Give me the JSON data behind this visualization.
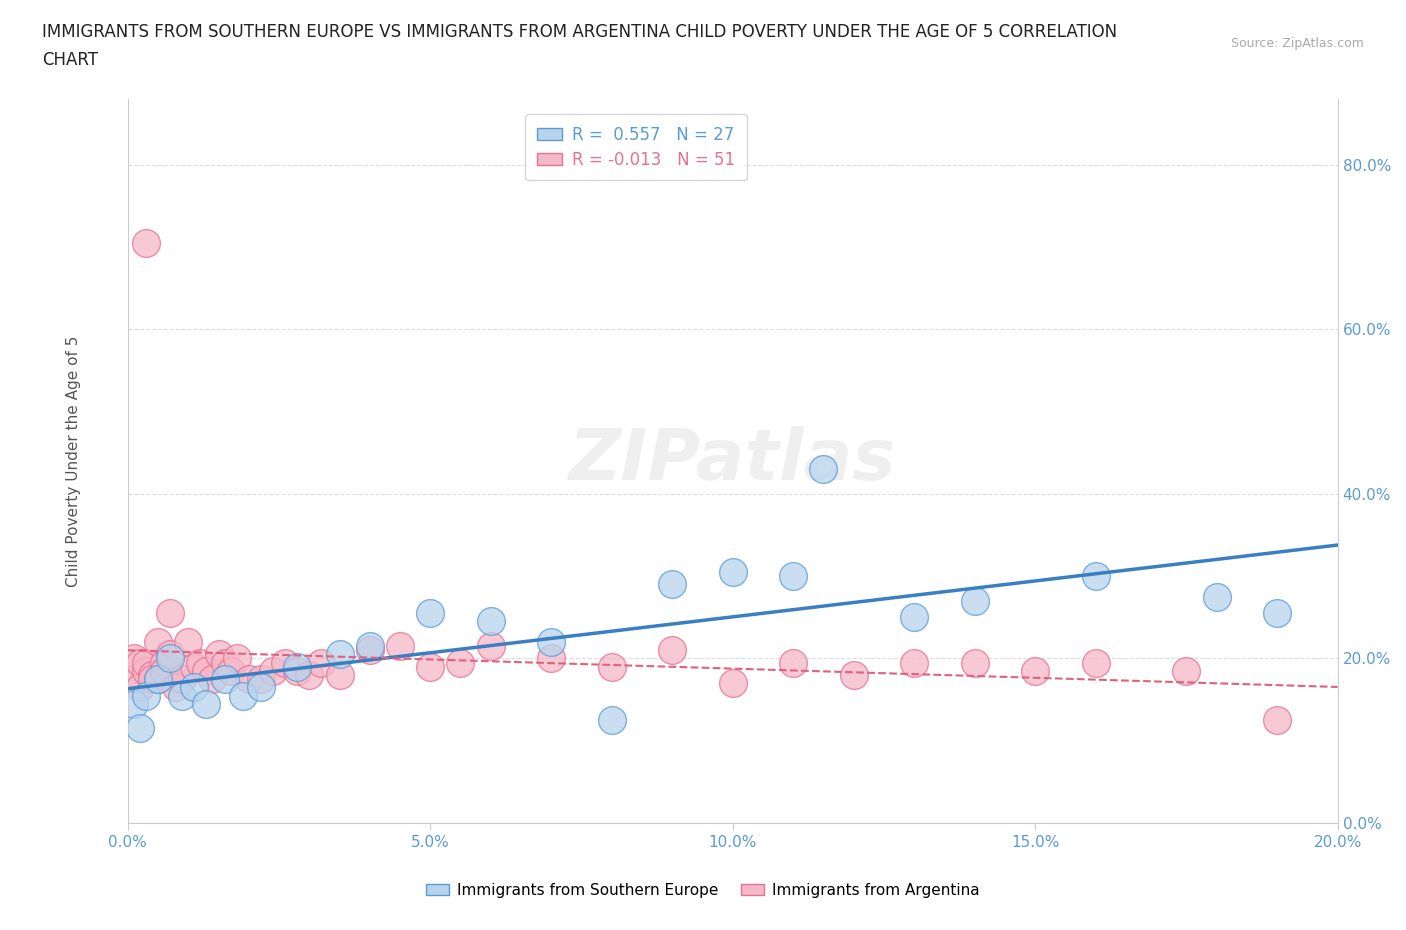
{
  "title_line1": "IMMIGRANTS FROM SOUTHERN EUROPE VS IMMIGRANTS FROM ARGENTINA CHILD POVERTY UNDER THE AGE OF 5 CORRELATION",
  "title_line2": "CHART",
  "source": "Source: ZipAtlas.com",
  "ylabel": "Child Poverty Under the Age of 5",
  "xlim": [
    0.0,
    0.2
  ],
  "ylim": [
    0.0,
    0.88
  ],
  "xticks": [
    0.0,
    0.05,
    0.1,
    0.15,
    0.2
  ],
  "yticks": [
    0.0,
    0.2,
    0.4,
    0.6,
    0.8
  ],
  "ytick_labels": [
    "0.0%",
    "20.0%",
    "40.0%",
    "60.0%",
    "80.0%"
  ],
  "xtick_labels": [
    "0.0%",
    "5.0%",
    "10.0%",
    "15.0%",
    "20.0%"
  ],
  "R_blue": 0.557,
  "N_blue": 27,
  "R_pink": -0.013,
  "N_pink": 51,
  "blue_fill": "#b8d4ed",
  "pink_fill": "#f5b8c8",
  "blue_edge": "#5b9bd5",
  "pink_edge": "#e87090",
  "blue_line_color": "#3a7fc1",
  "pink_line_color": "#e06080",
  "scatter_blue_x": [
    0.001,
    0.002,
    0.003,
    0.005,
    0.007,
    0.009,
    0.011,
    0.013,
    0.016,
    0.019,
    0.022,
    0.028,
    0.035,
    0.04,
    0.05,
    0.06,
    0.07,
    0.08,
    0.09,
    0.1,
    0.11,
    0.115,
    0.13,
    0.14,
    0.16,
    0.18,
    0.19
  ],
  "scatter_blue_y": [
    0.145,
    0.115,
    0.155,
    0.175,
    0.2,
    0.155,
    0.165,
    0.145,
    0.175,
    0.155,
    0.165,
    0.19,
    0.205,
    0.215,
    0.255,
    0.245,
    0.22,
    0.125,
    0.29,
    0.305,
    0.3,
    0.43,
    0.25,
    0.27,
    0.3,
    0.275,
    0.255
  ],
  "scatter_pink_x": [
    0.001,
    0.001,
    0.002,
    0.002,
    0.003,
    0.003,
    0.003,
    0.004,
    0.004,
    0.005,
    0.005,
    0.006,
    0.006,
    0.007,
    0.007,
    0.008,
    0.009,
    0.01,
    0.011,
    0.012,
    0.013,
    0.014,
    0.015,
    0.016,
    0.017,
    0.018,
    0.02,
    0.022,
    0.024,
    0.026,
    0.028,
    0.03,
    0.032,
    0.035,
    0.04,
    0.045,
    0.05,
    0.055,
    0.06,
    0.07,
    0.08,
    0.09,
    0.1,
    0.11,
    0.12,
    0.13,
    0.14,
    0.15,
    0.16,
    0.175,
    0.19
  ],
  "scatter_pink_y": [
    0.2,
    0.175,
    0.195,
    0.165,
    0.185,
    0.195,
    0.705,
    0.18,
    0.175,
    0.175,
    0.22,
    0.195,
    0.185,
    0.255,
    0.205,
    0.165,
    0.175,
    0.22,
    0.19,
    0.195,
    0.185,
    0.175,
    0.205,
    0.195,
    0.185,
    0.2,
    0.175,
    0.175,
    0.185,
    0.195,
    0.185,
    0.18,
    0.195,
    0.18,
    0.21,
    0.215,
    0.19,
    0.195,
    0.215,
    0.2,
    0.19,
    0.21,
    0.17,
    0.195,
    0.18,
    0.195,
    0.195,
    0.185,
    0.195,
    0.185,
    0.125
  ],
  "watermark": "ZIPatlas",
  "background_color": "#ffffff",
  "grid_color": "#dddddd",
  "tick_color": "#5b9bd5",
  "tick_fontsize": 11,
  "ylabel_fontsize": 11,
  "title_fontsize": 12
}
